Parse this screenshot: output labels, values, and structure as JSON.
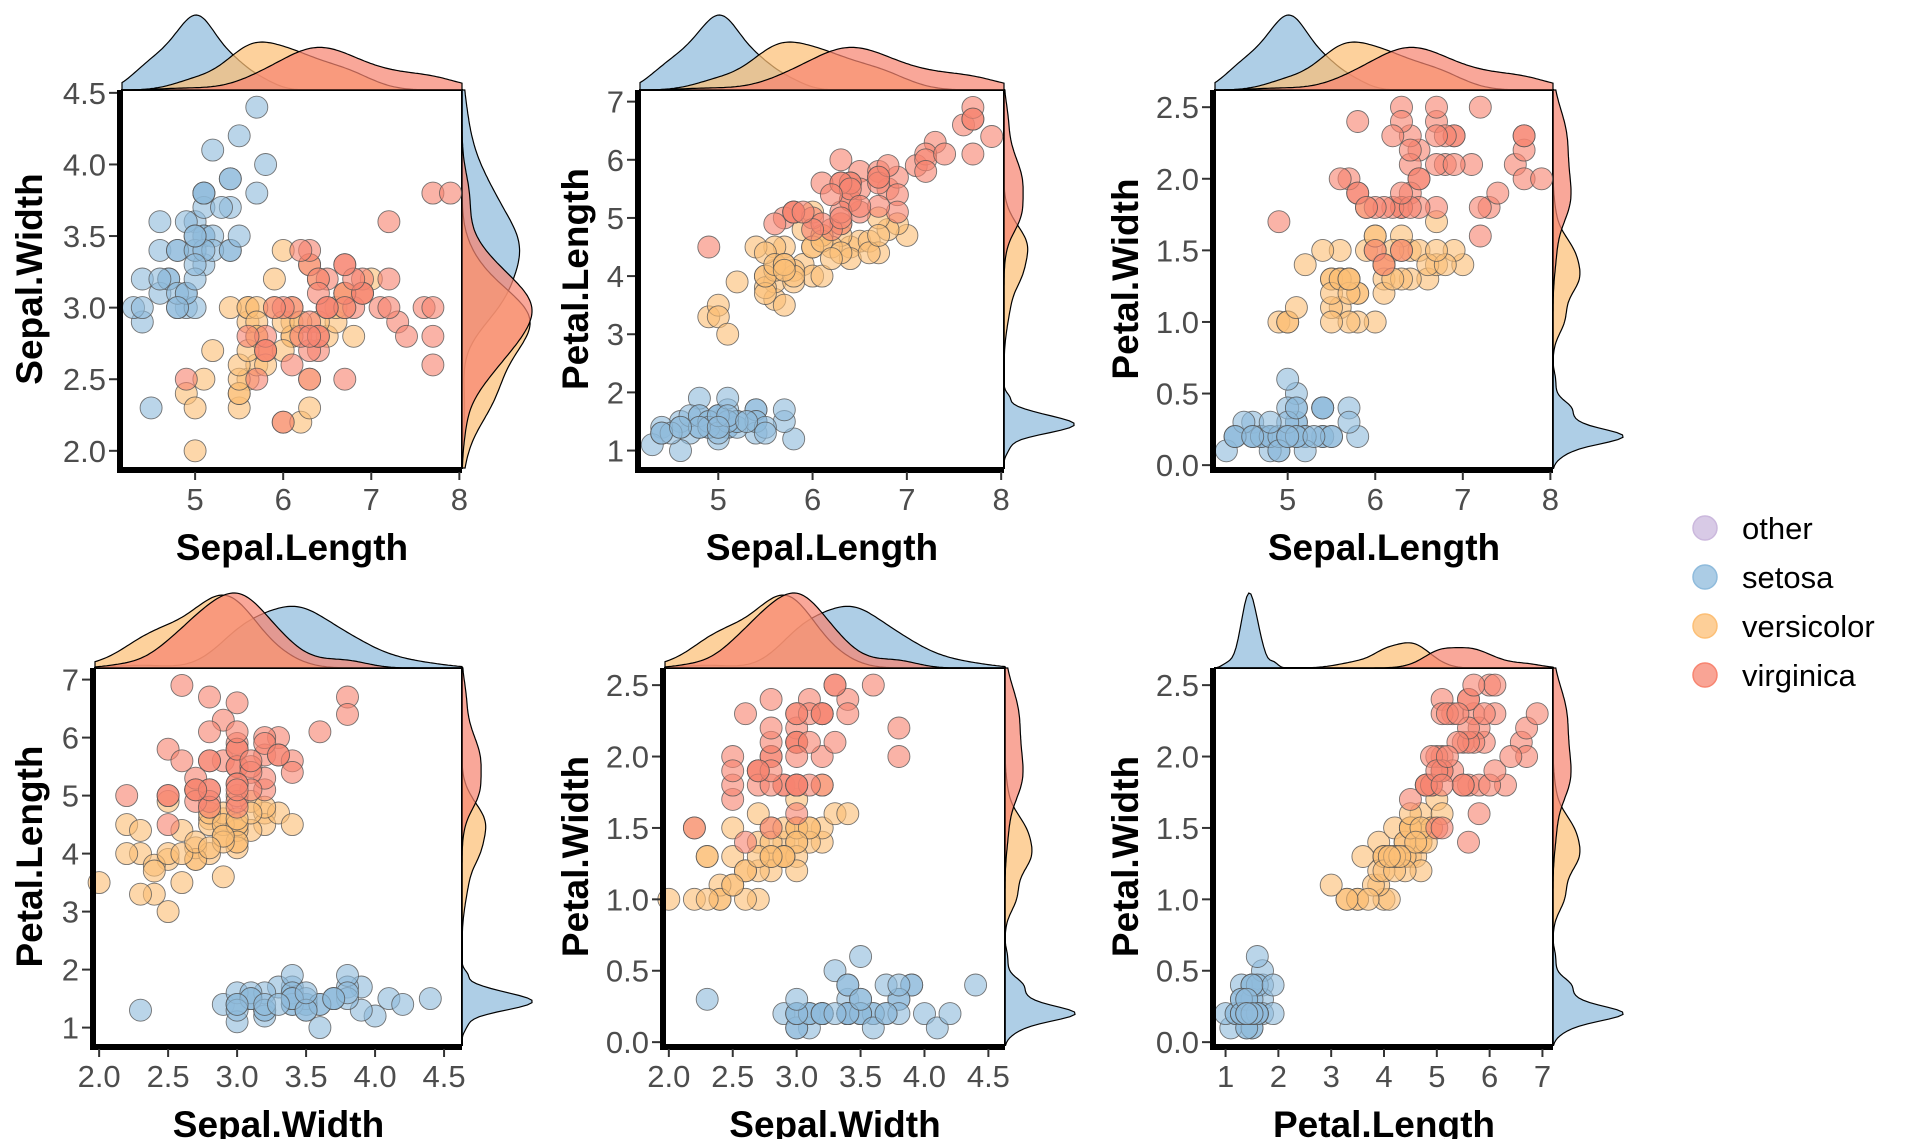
{
  "colors": {
    "other": "#cbb8dd",
    "setosa": "#8fbbdc",
    "versicolor": "#fcbf76",
    "virginica": "#f78571",
    "point_stroke": "#555555"
  },
  "legend": {
    "items": [
      {
        "key": "other",
        "label": "other"
      },
      {
        "key": "setosa",
        "label": "setosa"
      },
      {
        "key": "versicolor",
        "label": "versicolor"
      },
      {
        "key": "virginica",
        "label": "virginica"
      }
    ]
  },
  "iris": {
    "setosa": [
      [
        5.1,
        3.5,
        1.4,
        0.2
      ],
      [
        4.9,
        3.0,
        1.4,
        0.2
      ],
      [
        4.7,
        3.2,
        1.3,
        0.2
      ],
      [
        4.6,
        3.1,
        1.5,
        0.2
      ],
      [
        5.0,
        3.6,
        1.4,
        0.2
      ],
      [
        5.4,
        3.9,
        1.7,
        0.4
      ],
      [
        4.6,
        3.4,
        1.4,
        0.3
      ],
      [
        5.0,
        3.4,
        1.5,
        0.2
      ],
      [
        4.4,
        2.9,
        1.4,
        0.2
      ],
      [
        4.9,
        3.1,
        1.5,
        0.1
      ],
      [
        5.4,
        3.7,
        1.5,
        0.2
      ],
      [
        4.8,
        3.4,
        1.6,
        0.2
      ],
      [
        4.8,
        3.0,
        1.4,
        0.1
      ],
      [
        4.3,
        3.0,
        1.1,
        0.1
      ],
      [
        5.8,
        4.0,
        1.2,
        0.2
      ],
      [
        5.7,
        4.4,
        1.5,
        0.4
      ],
      [
        5.4,
        3.9,
        1.3,
        0.4
      ],
      [
        5.1,
        3.5,
        1.4,
        0.3
      ],
      [
        5.7,
        3.8,
        1.7,
        0.3
      ],
      [
        5.1,
        3.8,
        1.5,
        0.3
      ],
      [
        5.4,
        3.4,
        1.7,
        0.2
      ],
      [
        5.1,
        3.7,
        1.5,
        0.4
      ],
      [
        4.6,
        3.6,
        1.0,
        0.2
      ],
      [
        5.1,
        3.3,
        1.7,
        0.5
      ],
      [
        4.8,
        3.4,
        1.9,
        0.2
      ],
      [
        5.0,
        3.0,
        1.6,
        0.2
      ],
      [
        5.0,
        3.4,
        1.6,
        0.4
      ],
      [
        5.2,
        3.5,
        1.5,
        0.2
      ],
      [
        5.2,
        3.4,
        1.4,
        0.2
      ],
      [
        4.7,
        3.2,
        1.6,
        0.2
      ],
      [
        4.8,
        3.1,
        1.6,
        0.2
      ],
      [
        5.4,
        3.4,
        1.5,
        0.4
      ],
      [
        5.2,
        4.1,
        1.5,
        0.1
      ],
      [
        5.5,
        4.2,
        1.4,
        0.2
      ],
      [
        4.9,
        3.1,
        1.5,
        0.2
      ],
      [
        5.0,
        3.2,
        1.2,
        0.2
      ],
      [
        5.5,
        3.5,
        1.3,
        0.2
      ],
      [
        4.9,
        3.6,
        1.4,
        0.1
      ],
      [
        4.4,
        3.0,
        1.3,
        0.2
      ],
      [
        5.1,
        3.4,
        1.5,
        0.2
      ],
      [
        5.0,
        3.5,
        1.3,
        0.3
      ],
      [
        4.5,
        2.3,
        1.3,
        0.3
      ],
      [
        4.4,
        3.2,
        1.3,
        0.2
      ],
      [
        5.0,
        3.5,
        1.6,
        0.6
      ],
      [
        5.1,
        3.8,
        1.9,
        0.4
      ],
      [
        4.8,
        3.0,
        1.4,
        0.3
      ],
      [
        5.1,
        3.8,
        1.6,
        0.2
      ],
      [
        4.6,
        3.2,
        1.4,
        0.2
      ],
      [
        5.3,
        3.7,
        1.5,
        0.2
      ],
      [
        5.0,
        3.3,
        1.4,
        0.2
      ]
    ],
    "versicolor": [
      [
        7.0,
        3.2,
        4.7,
        1.4
      ],
      [
        6.4,
        3.2,
        4.5,
        1.5
      ],
      [
        6.9,
        3.1,
        4.9,
        1.5
      ],
      [
        5.5,
        2.3,
        4.0,
        1.3
      ],
      [
        6.5,
        2.8,
        4.6,
        1.5
      ],
      [
        5.7,
        2.8,
        4.5,
        1.3
      ],
      [
        6.3,
        3.3,
        4.7,
        1.6
      ],
      [
        4.9,
        2.4,
        3.3,
        1.0
      ],
      [
        6.6,
        2.9,
        4.6,
        1.3
      ],
      [
        5.2,
        2.7,
        3.9,
        1.4
      ],
      [
        5.0,
        2.0,
        3.5,
        1.0
      ],
      [
        5.9,
        3.0,
        4.2,
        1.5
      ],
      [
        6.0,
        2.2,
        4.0,
        1.0
      ],
      [
        6.1,
        2.9,
        4.7,
        1.4
      ],
      [
        5.6,
        2.9,
        3.6,
        1.3
      ],
      [
        6.7,
        3.1,
        4.4,
        1.4
      ],
      [
        5.6,
        3.0,
        4.5,
        1.5
      ],
      [
        5.8,
        2.7,
        4.1,
        1.0
      ],
      [
        6.2,
        2.2,
        4.5,
        1.5
      ],
      [
        5.6,
        2.5,
        3.9,
        1.1
      ],
      [
        5.9,
        3.2,
        4.8,
        1.8
      ],
      [
        6.1,
        2.8,
        4.0,
        1.3
      ],
      [
        6.3,
        2.5,
        4.9,
        1.5
      ],
      [
        6.1,
        2.8,
        4.7,
        1.2
      ],
      [
        6.4,
        2.9,
        4.3,
        1.3
      ],
      [
        6.6,
        3.0,
        4.4,
        1.4
      ],
      [
        6.8,
        2.8,
        4.8,
        1.4
      ],
      [
        6.7,
        3.0,
        5.0,
        1.7
      ],
      [
        6.0,
        2.9,
        4.5,
        1.5
      ],
      [
        5.7,
        2.6,
        3.5,
        1.0
      ],
      [
        5.5,
        2.4,
        3.8,
        1.1
      ],
      [
        5.5,
        2.4,
        3.7,
        1.0
      ],
      [
        5.8,
        2.7,
        3.9,
        1.2
      ],
      [
        6.0,
        2.7,
        5.1,
        1.6
      ],
      [
        5.4,
        3.0,
        4.5,
        1.5
      ],
      [
        6.0,
        3.4,
        4.5,
        1.6
      ],
      [
        6.7,
        3.1,
        4.7,
        1.5
      ],
      [
        6.3,
        2.3,
        4.4,
        1.3
      ],
      [
        5.6,
        3.0,
        4.1,
        1.3
      ],
      [
        5.5,
        2.5,
        4.0,
        1.3
      ],
      [
        5.5,
        2.6,
        4.4,
        1.2
      ],
      [
        6.1,
        3.0,
        4.6,
        1.4
      ],
      [
        5.8,
        2.6,
        4.0,
        1.2
      ],
      [
        5.0,
        2.3,
        3.3,
        1.0
      ],
      [
        5.6,
        2.7,
        4.2,
        1.3
      ],
      [
        5.7,
        3.0,
        4.2,
        1.2
      ],
      [
        5.7,
        2.9,
        4.2,
        1.3
      ],
      [
        6.2,
        2.9,
        4.3,
        1.3
      ],
      [
        5.1,
        2.5,
        3.0,
        1.1
      ],
      [
        5.7,
        2.8,
        4.1,
        1.3
      ]
    ],
    "virginica": [
      [
        6.3,
        3.3,
        6.0,
        2.5
      ],
      [
        5.8,
        2.7,
        5.1,
        1.9
      ],
      [
        7.1,
        3.0,
        5.9,
        2.1
      ],
      [
        6.3,
        2.9,
        5.6,
        1.8
      ],
      [
        6.5,
        3.0,
        5.8,
        2.2
      ],
      [
        7.6,
        3.0,
        6.6,
        2.1
      ],
      [
        4.9,
        2.5,
        4.5,
        1.7
      ],
      [
        7.3,
        2.9,
        6.3,
        1.8
      ],
      [
        6.7,
        2.5,
        5.8,
        1.8
      ],
      [
        7.2,
        3.6,
        6.1,
        2.5
      ],
      [
        6.5,
        3.2,
        5.1,
        2.0
      ],
      [
        6.4,
        2.7,
        5.3,
        1.9
      ],
      [
        6.8,
        3.0,
        5.5,
        2.1
      ],
      [
        5.7,
        2.5,
        5.0,
        2.0
      ],
      [
        5.8,
        2.8,
        5.1,
        2.4
      ],
      [
        6.4,
        3.2,
        5.3,
        2.3
      ],
      [
        6.5,
        3.0,
        5.5,
        1.8
      ],
      [
        7.7,
        3.8,
        6.7,
        2.2
      ],
      [
        7.7,
        2.6,
        6.9,
        2.3
      ],
      [
        6.0,
        2.2,
        5.0,
        1.5
      ],
      [
        6.9,
        3.2,
        5.7,
        2.3
      ],
      [
        5.6,
        2.8,
        4.9,
        2.0
      ],
      [
        7.7,
        2.8,
        6.7,
        2.0
      ],
      [
        6.3,
        2.7,
        4.9,
        1.8
      ],
      [
        6.7,
        3.3,
        5.7,
        2.1
      ],
      [
        7.2,
        3.2,
        6.0,
        1.8
      ],
      [
        6.2,
        2.8,
        4.8,
        1.8
      ],
      [
        6.1,
        3.0,
        4.9,
        1.8
      ],
      [
        6.4,
        2.8,
        5.6,
        2.1
      ],
      [
        7.2,
        3.0,
        5.8,
        1.6
      ],
      [
        7.4,
        2.8,
        6.1,
        1.9
      ],
      [
        7.9,
        3.8,
        6.4,
        2.0
      ],
      [
        6.4,
        2.8,
        5.6,
        2.2
      ],
      [
        6.3,
        2.8,
        5.1,
        1.5
      ],
      [
        6.1,
        2.6,
        5.6,
        1.4
      ],
      [
        7.7,
        3.0,
        6.1,
        2.3
      ],
      [
        6.3,
        3.4,
        5.6,
        2.4
      ],
      [
        6.4,
        3.1,
        5.5,
        1.8
      ],
      [
        6.0,
        3.0,
        4.8,
        1.8
      ],
      [
        6.9,
        3.1,
        5.4,
        2.1
      ],
      [
        6.7,
        3.1,
        5.6,
        2.4
      ],
      [
        6.9,
        3.1,
        5.1,
        2.3
      ],
      [
        5.8,
        2.7,
        5.1,
        1.9
      ],
      [
        6.8,
        3.2,
        5.9,
        2.3
      ],
      [
        6.7,
        3.3,
        5.7,
        2.5
      ],
      [
        6.7,
        3.0,
        5.2,
        2.3
      ],
      [
        6.3,
        2.5,
        5.0,
        1.9
      ],
      [
        6.5,
        3.0,
        5.2,
        2.0
      ],
      [
        6.2,
        3.4,
        5.4,
        2.3
      ],
      [
        5.9,
        3.0,
        5.1,
        1.8
      ]
    ]
  },
  "chart_data": [
    {
      "type": "scatter",
      "xlabel": "Sepal.Length",
      "ylabel": "Sepal.Width",
      "x_var": 0,
      "y_var": 1,
      "xlim": [
        4.17,
        8.03
      ],
      "ylim": [
        1.88,
        4.52
      ],
      "xticks": [
        {
          "v": 5,
          "label": "5"
        },
        {
          "v": 6,
          "label": "6"
        },
        {
          "v": 7,
          "label": "7"
        },
        {
          "v": 8,
          "label": "8"
        }
      ],
      "yticks": [
        {
          "v": 2.0,
          "label": "2.0"
        },
        {
          "v": 2.5,
          "label": "2.5"
        },
        {
          "v": 3.0,
          "label": "3.0"
        },
        {
          "v": 3.5,
          "label": "3.5"
        },
        {
          "v": 4.0,
          "label": "4.0"
        },
        {
          "v": 4.5,
          "label": "4.5"
        }
      ],
      "top_density": [
        "setosa",
        "versicolor",
        "virginica"
      ],
      "right_density": [
        "setosa",
        "versicolor",
        "virginica"
      ],
      "series": [
        "other",
        "setosa",
        "versicolor",
        "virginica"
      ]
    },
    {
      "type": "scatter",
      "xlabel": "Sepal.Length",
      "ylabel": "Petal.Length",
      "x_var": 0,
      "y_var": 2,
      "xlim": [
        4.17,
        8.03
      ],
      "ylim": [
        0.7,
        7.2
      ],
      "xticks": [
        {
          "v": 5,
          "label": "5"
        },
        {
          "v": 6,
          "label": "6"
        },
        {
          "v": 7,
          "label": "7"
        },
        {
          "v": 8,
          "label": "8"
        }
      ],
      "yticks": [
        {
          "v": 1,
          "label": "1"
        },
        {
          "v": 2,
          "label": "2"
        },
        {
          "v": 3,
          "label": "3"
        },
        {
          "v": 4,
          "label": "4"
        },
        {
          "v": 5,
          "label": "5"
        },
        {
          "v": 6,
          "label": "6"
        },
        {
          "v": 7,
          "label": "7"
        }
      ],
      "top_density": [
        "setosa",
        "versicolor",
        "virginica"
      ],
      "right_density": [
        "setosa",
        "versicolor",
        "virginica"
      ],
      "series": [
        "other",
        "setosa",
        "versicolor",
        "virginica"
      ]
    },
    {
      "type": "scatter",
      "xlabel": "Sepal.Length",
      "ylabel": "Petal.Width",
      "x_var": 0,
      "y_var": 3,
      "xlim": [
        4.17,
        8.03
      ],
      "ylim": [
        -0.02,
        2.62
      ],
      "xticks": [
        {
          "v": 5,
          "label": "5"
        },
        {
          "v": 6,
          "label": "6"
        },
        {
          "v": 7,
          "label": "7"
        },
        {
          "v": 8,
          "label": "8"
        }
      ],
      "yticks": [
        {
          "v": 0.0,
          "label": "0.0"
        },
        {
          "v": 0.5,
          "label": "0.5"
        },
        {
          "v": 1.0,
          "label": "1.0"
        },
        {
          "v": 1.5,
          "label": "1.5"
        },
        {
          "v": 2.0,
          "label": "2.0"
        },
        {
          "v": 2.5,
          "label": "2.5"
        }
      ],
      "top_density": [
        "setosa",
        "versicolor",
        "virginica"
      ],
      "right_density": [
        "setosa",
        "versicolor",
        "virginica"
      ],
      "series": [
        "other",
        "setosa",
        "versicolor",
        "virginica"
      ]
    },
    {
      "type": "scatter",
      "xlabel": "Sepal.Width",
      "ylabel": "Petal.Length",
      "x_var": 1,
      "y_var": 2,
      "xlim": [
        1.97,
        4.63
      ],
      "ylim": [
        0.7,
        7.2
      ],
      "xticks": [
        {
          "v": 2.0,
          "label": "2.0"
        },
        {
          "v": 2.5,
          "label": "2.5"
        },
        {
          "v": 3.0,
          "label": "3.0"
        },
        {
          "v": 3.5,
          "label": "3.5"
        },
        {
          "v": 4.0,
          "label": "4.0"
        },
        {
          "v": 4.5,
          "label": "4.5"
        }
      ],
      "yticks": [
        {
          "v": 1,
          "label": "1"
        },
        {
          "v": 2,
          "label": "2"
        },
        {
          "v": 3,
          "label": "3"
        },
        {
          "v": 4,
          "label": "4"
        },
        {
          "v": 5,
          "label": "5"
        },
        {
          "v": 6,
          "label": "6"
        },
        {
          "v": 7,
          "label": "7"
        }
      ],
      "top_density": [
        "setosa",
        "versicolor",
        "virginica"
      ],
      "right_density": [
        "setosa",
        "versicolor",
        "virginica"
      ],
      "series": [
        "other",
        "setosa",
        "versicolor",
        "virginica"
      ]
    },
    {
      "type": "scatter",
      "xlabel": "Sepal.Width",
      "ylabel": "Petal.Width",
      "x_var": 1,
      "y_var": 3,
      "xlim": [
        1.97,
        4.63
      ],
      "ylim": [
        -0.02,
        2.62
      ],
      "xticks": [
        {
          "v": 2.0,
          "label": "2.0"
        },
        {
          "v": 2.5,
          "label": "2.5"
        },
        {
          "v": 3.0,
          "label": "3.0"
        },
        {
          "v": 3.5,
          "label": "3.5"
        },
        {
          "v": 4.0,
          "label": "4.0"
        },
        {
          "v": 4.5,
          "label": "4.5"
        }
      ],
      "yticks": [
        {
          "v": 0.0,
          "label": "0.0"
        },
        {
          "v": 0.5,
          "label": "0.5"
        },
        {
          "v": 1.0,
          "label": "1.0"
        },
        {
          "v": 1.5,
          "label": "1.5"
        },
        {
          "v": 2.0,
          "label": "2.0"
        },
        {
          "v": 2.5,
          "label": "2.5"
        }
      ],
      "top_density": [
        "setosa",
        "versicolor",
        "virginica"
      ],
      "right_density": [
        "setosa",
        "versicolor",
        "virginica"
      ],
      "series": [
        "other",
        "setosa",
        "versicolor",
        "virginica"
      ]
    },
    {
      "type": "scatter",
      "xlabel": "Petal.Length",
      "ylabel": "Petal.Width",
      "x_var": 2,
      "y_var": 3,
      "xlim": [
        0.8,
        7.2
      ],
      "ylim": [
        -0.02,
        2.62
      ],
      "xticks": [
        {
          "v": 1,
          "label": "1"
        },
        {
          "v": 2,
          "label": "2"
        },
        {
          "v": 3,
          "label": "3"
        },
        {
          "v": 4,
          "label": "4"
        },
        {
          "v": 5,
          "label": "5"
        },
        {
          "v": 6,
          "label": "6"
        },
        {
          "v": 7,
          "label": "7"
        }
      ],
      "yticks": [
        {
          "v": 0.0,
          "label": "0.0"
        },
        {
          "v": 0.5,
          "label": "0.5"
        },
        {
          "v": 1.0,
          "label": "1.0"
        },
        {
          "v": 1.5,
          "label": "1.5"
        },
        {
          "v": 2.0,
          "label": "2.0"
        },
        {
          "v": 2.5,
          "label": "2.5"
        }
      ],
      "top_density": [
        "setosa",
        "versicolor",
        "virginica"
      ],
      "right_density": [
        "setosa",
        "versicolor",
        "virginica"
      ],
      "series": [
        "other",
        "setosa",
        "versicolor",
        "virginica"
      ]
    }
  ]
}
